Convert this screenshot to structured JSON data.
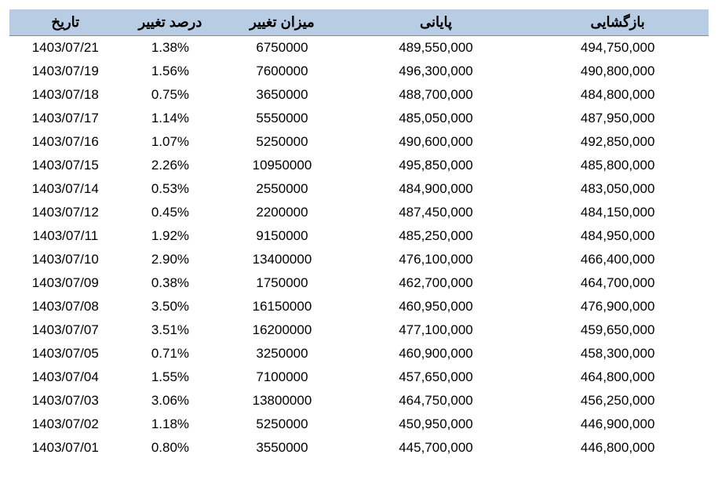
{
  "table": {
    "header_bg": "#b8cce4",
    "columns": [
      {
        "key": "date",
        "label": "تاریخ"
      },
      {
        "key": "pct",
        "label": "درصد تغییر"
      },
      {
        "key": "change",
        "label": "میزان تغییر"
      },
      {
        "key": "close",
        "label": "پایانی"
      },
      {
        "key": "open",
        "label": "بازگشایی"
      }
    ],
    "rows": [
      {
        "date": "1403/07/21",
        "pct": "1.38%",
        "change": "6750000",
        "close": "489,550,000",
        "open": "494,750,000"
      },
      {
        "date": "1403/07/19",
        "pct": "1.56%",
        "change": "7600000",
        "close": "496,300,000",
        "open": "490,800,000"
      },
      {
        "date": "1403/07/18",
        "pct": "0.75%",
        "change": "3650000",
        "close": "488,700,000",
        "open": "484,800,000"
      },
      {
        "date": "1403/07/17",
        "pct": "1.14%",
        "change": "5550000",
        "close": "485,050,000",
        "open": "487,950,000"
      },
      {
        "date": "1403/07/16",
        "pct": "1.07%",
        "change": "5250000",
        "close": "490,600,000",
        "open": "492,850,000"
      },
      {
        "date": "1403/07/15",
        "pct": "2.26%",
        "change": "10950000",
        "close": "495,850,000",
        "open": "485,800,000"
      },
      {
        "date": "1403/07/14",
        "pct": "0.53%",
        "change": "2550000",
        "close": "484,900,000",
        "open": "483,050,000"
      },
      {
        "date": "1403/07/12",
        "pct": "0.45%",
        "change": "2200000",
        "close": "487,450,000",
        "open": "484,150,000"
      },
      {
        "date": "1403/07/11",
        "pct": "1.92%",
        "change": "9150000",
        "close": "485,250,000",
        "open": "484,950,000"
      },
      {
        "date": "1403/07/10",
        "pct": "2.90%",
        "change": "13400000",
        "close": "476,100,000",
        "open": "466,400,000"
      },
      {
        "date": "1403/07/09",
        "pct": "0.38%",
        "change": "1750000",
        "close": "462,700,000",
        "open": "464,700,000"
      },
      {
        "date": "1403/07/08",
        "pct": "3.50%",
        "change": "16150000",
        "close": "460,950,000",
        "open": "476,900,000"
      },
      {
        "date": "1403/07/07",
        "pct": "3.51%",
        "change": "16200000",
        "close": "477,100,000",
        "open": "459,650,000"
      },
      {
        "date": "1403/07/05",
        "pct": "0.71%",
        "change": "3250000",
        "close": "460,900,000",
        "open": "458,300,000"
      },
      {
        "date": "1403/07/04",
        "pct": "1.55%",
        "change": "7100000",
        "close": "457,650,000",
        "open": "464,800,000"
      },
      {
        "date": "1403/07/03",
        "pct": "3.06%",
        "change": "13800000",
        "close": "464,750,000",
        "open": "456,250,000"
      },
      {
        "date": "1403/07/02",
        "pct": "1.18%",
        "change": "5250000",
        "close": "450,950,000",
        "open": "446,900,000"
      },
      {
        "date": "1403/07/01",
        "pct": "0.80%",
        "change": "3550000",
        "close": "445,700,000",
        "open": "446,800,000"
      }
    ]
  }
}
